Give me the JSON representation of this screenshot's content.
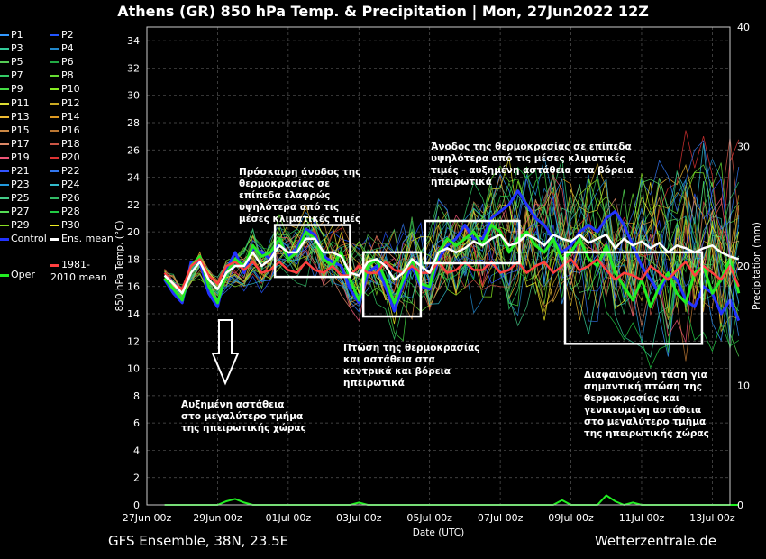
{
  "title": "Athens  (GR)  850 hPa Temp. & Precipitation | Mon, 27Jun2022 12Z",
  "footer": {
    "left": "GFS Ensemble, 38N, 23.5E",
    "right": "Wetterzentrale.de"
  },
  "colors": {
    "background": "#000000",
    "control": "#2233ff",
    "ens_mean": "#ffffff",
    "climate_mean": "#ff4040",
    "oper": "#22ee22",
    "boxes": "#ffffff"
  },
  "legend": {
    "members": [
      "P1",
      "P2",
      "P3",
      "P4",
      "P5",
      "P6",
      "P7",
      "P8",
      "P9",
      "P10",
      "P11",
      "P12",
      "P13",
      "P14",
      "P15",
      "P16",
      "P17",
      "P18",
      "P19",
      "P20",
      "P21",
      "P22",
      "P23",
      "P24",
      "P25",
      "P26",
      "P27",
      "P28",
      "P29",
      "P30"
    ],
    "member_colors": [
      "#3399ff",
      "#2255ff",
      "#33cc99",
      "#2288cc",
      "#55cc55",
      "#22aa44",
      "#33cc66",
      "#66dd33",
      "#44dd44",
      "#88ee22",
      "#dddd33",
      "#ccaa22",
      "#eebb33",
      "#dd9922",
      "#cc8844",
      "#bb7733",
      "#dd8866",
      "#cc5544",
      "#ee5577",
      "#dd3333",
      "#3355ff",
      "#3377ee",
      "#2299dd",
      "#33bbcc",
      "#44cc88",
      "#33bb66",
      "#55dd55",
      "#22cc44",
      "#88dd22",
      "#eeee22"
    ],
    "control": "Control",
    "ens_mean": "Ens. mean",
    "climate": "1981-2010 mean",
    "oper": "Oper"
  },
  "annotations": [
    "Πρόσκαιρη άνοδος της θερμοκρασίας σε επίπεδα ελαφρώς υψηλότερα από τις μέσες κλιματικές τιμές",
    "Άνοδος της θερμοκρασίας σε επίπεδα υψηλότερα από τις μέσες κλιματικές τιμές - αυξημένη αστάθεια στα βόρεια ηπειρωτικά",
    "Πτώση της θερμοκρασίας και αστάθεια στα κεντρικά και βόρεια ηπειρωτικά",
    "Αυξημένη αστάθεια στο μεγαλύτερο τμήμα της ηπειρωτικής χώρας",
    "Διαφαινόμενη τάση για σημαντική πτώση της θερμοκρασίας και γενικευμένη αστάθεια στο μεγαλύτερο τμήμα της ηπειρωτικής χώρας"
  ],
  "chart_data": {
    "type": "line",
    "xlabel": "Date (UTC)",
    "ylabel": "850 hPa Temp. (°C)",
    "y2label": "Precipitation (mm)",
    "ylim": [
      0,
      35
    ],
    "y2lim": [
      0,
      40
    ],
    "xlim": [
      "27Jun 00z",
      "13Jul 12z"
    ],
    "x_ticks": [
      "27Jun 00z",
      "29Jun 00z",
      "01Jul 00z",
      "03Jul 00z",
      "05Jul 00z",
      "07Jul 00z",
      "09Jul 00z",
      "11Jul 00z",
      "13Jul 00z"
    ],
    "y_ticks": [
      0,
      2,
      4,
      6,
      8,
      10,
      12,
      14,
      16,
      18,
      20,
      22,
      24,
      26,
      28,
      30,
      32,
      34
    ],
    "y2_ticks": [
      0,
      10,
      20,
      30,
      40
    ],
    "grid": true,
    "legend_position": "left outside",
    "time_step_hours": 6,
    "x_start": "27Jun 12z",
    "series": [
      {
        "name": "Ens. mean",
        "values": [
          16.8,
          16.2,
          15.5,
          17.0,
          17.8,
          16.5,
          15.8,
          17.0,
          17.5,
          17.5,
          18.5,
          17.5,
          18.0,
          19.0,
          18.5,
          18.5,
          19.5,
          19.5,
          18.5,
          18.5,
          18.2,
          17.0,
          16.8,
          17.8,
          18.0,
          17.5,
          16.5,
          17.0,
          18.0,
          17.5,
          17.0,
          18.5,
          18.8,
          18.5,
          18.8,
          19.3,
          19.0,
          19.5,
          19.8,
          19.0,
          19.2,
          19.8,
          19.5,
          19.0,
          19.8,
          19.5,
          19.3,
          19.8,
          19.2,
          19.5,
          19.8,
          18.8,
          19.5,
          19.0,
          19.3,
          18.8,
          19.2,
          18.5,
          19.0,
          18.8,
          18.5,
          18.8,
          19.0,
          18.5,
          18.2,
          18.0
        ]
      },
      {
        "name": "1981-2010 mean",
        "values": [
          17.0,
          16.2,
          15.8,
          17.5,
          18.0,
          16.8,
          16.2,
          17.5,
          17.8,
          17.2,
          17.8,
          17.0,
          17.2,
          17.8,
          17.2,
          17.0,
          17.8,
          17.2,
          17.0,
          17.5,
          16.8,
          16.8,
          17.5,
          17.0,
          17.0,
          17.8,
          17.2,
          17.0,
          17.5,
          17.0,
          17.0,
          17.8,
          17.0,
          17.2,
          17.8,
          17.2,
          17.2,
          17.8,
          17.0,
          17.2,
          17.8,
          17.0,
          17.5,
          17.8,
          17.0,
          17.5,
          18.0,
          17.2,
          17.5,
          18.0,
          17.2,
          16.5,
          17.0,
          16.8,
          16.5,
          17.5,
          17.0,
          16.5,
          17.2,
          17.8,
          16.8,
          17.5,
          17.0,
          16.5,
          17.5,
          16.0
        ]
      },
      {
        "name": "Oper",
        "values": [
          16.6,
          15.8,
          15.0,
          17.5,
          18.2,
          16.0,
          14.8,
          17.0,
          18.0,
          17.5,
          19.0,
          18.2,
          18.5,
          19.5,
          18.0,
          18.5,
          20.0,
          19.5,
          18.0,
          17.5,
          18.5,
          16.5,
          15.0,
          17.5,
          18.0,
          16.5,
          14.8,
          16.5,
          18.0,
          16.2,
          16.0,
          18.5,
          19.5,
          19.0,
          19.5,
          20.0,
          19.0,
          20.5,
          20.0,
          18.5,
          19.5,
          20.0,
          19.0,
          18.5,
          19.5,
          18.0,
          18.5,
          19.5,
          18.0,
          17.5,
          19.0,
          17.0,
          16.0,
          15.0,
          16.5,
          14.5,
          16.0,
          17.0,
          15.5,
          14.8,
          17.0,
          17.5,
          15.5,
          16.5,
          18.0,
          15.5
        ]
      },
      {
        "name": "Control",
        "values": [
          16.5,
          15.5,
          14.8,
          17.8,
          17.8,
          15.5,
          14.5,
          17.2,
          18.5,
          17.0,
          18.8,
          18.5,
          18.0,
          19.5,
          18.2,
          18.8,
          20.2,
          19.8,
          18.2,
          17.8,
          17.5,
          15.8,
          14.8,
          17.0,
          17.5,
          16.0,
          14.2,
          16.2,
          17.5,
          16.0,
          15.8,
          18.0,
          19.0,
          19.5,
          20.5,
          19.5,
          19.5,
          21.0,
          21.5,
          22.0,
          23.0,
          22.0,
          21.0,
          20.5,
          19.5,
          18.5,
          19.0,
          20.0,
          20.5,
          20.0,
          21.0,
          21.5,
          20.5,
          19.0,
          17.5,
          16.5,
          15.5,
          17.0,
          16.5,
          15.0,
          14.5,
          16.0,
          15.5,
          14.0,
          15.0,
          13.5
        ]
      }
    ],
    "precipitation_mm": [
      0,
      0,
      0,
      0,
      0,
      0,
      0,
      0.3,
      0.5,
      0.2,
      0,
      0,
      0,
      0,
      0,
      0,
      0,
      0,
      0,
      0,
      0,
      0,
      0.2,
      0,
      0,
      0,
      0,
      0,
      0,
      0,
      0,
      0,
      0,
      0,
      0,
      0,
      0,
      0,
      0,
      0,
      0,
      0,
      0,
      0,
      0,
      0.4,
      0,
      0,
      0,
      0,
      0.8,
      0.3,
      0,
      0.2,
      0,
      0,
      0,
      0,
      0,
      0,
      0,
      0,
      0,
      0,
      0,
      0
    ]
  }
}
